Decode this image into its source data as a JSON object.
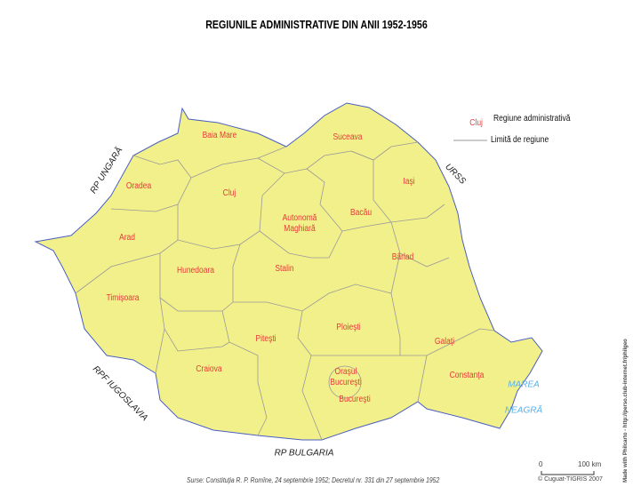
{
  "title": "REGIUNILE ADMINISTRATIVE DIN ANII 1952-1956",
  "legend": {
    "sample_label": "Cluj",
    "region_label": "Regiune administrativă",
    "boundary_label": "Limită de regiune"
  },
  "regions": [
    "Baia Mare",
    "Suceava",
    "Oradea",
    "Cluj",
    "Iaşi",
    "Autonomă Maghiară",
    "Bacău",
    "Arad",
    "Hunedoara",
    "Stalin",
    "Bârlad",
    "Timişoara",
    "Piteşti",
    "Ploieşti",
    "Galaţi",
    "Craiova",
    "Oraşul Bucureşti",
    "Bucureşti",
    "Constanţa"
  ],
  "neighbors": {
    "hungary": "RP UNGARĂ",
    "ussr": "URSS",
    "yugoslavia": "RPF IUGOSLAVIA",
    "bulgaria": "RP BULGARIA"
  },
  "sea": {
    "line1": "MAREA",
    "line2": "NEAGRĂ"
  },
  "scale": {
    "zero": "0",
    "max": "100 km"
  },
  "source": "Surse: Constituţia R. P. Romîne, 24 septembrie 1952; Decretul nr. 331 din 27 septembrie 1952",
  "copyright": "© Cuguat-TIGRIS 2007",
  "credit": "Made with Philcarto - http://perso.club-internet.fr/philgeo",
  "colors": {
    "land": "#f2f08a",
    "border": "#4a5fc1",
    "region_boundary": "#9a9a9a",
    "label": "#e8393a",
    "sea_label": "#5ab0e8"
  }
}
